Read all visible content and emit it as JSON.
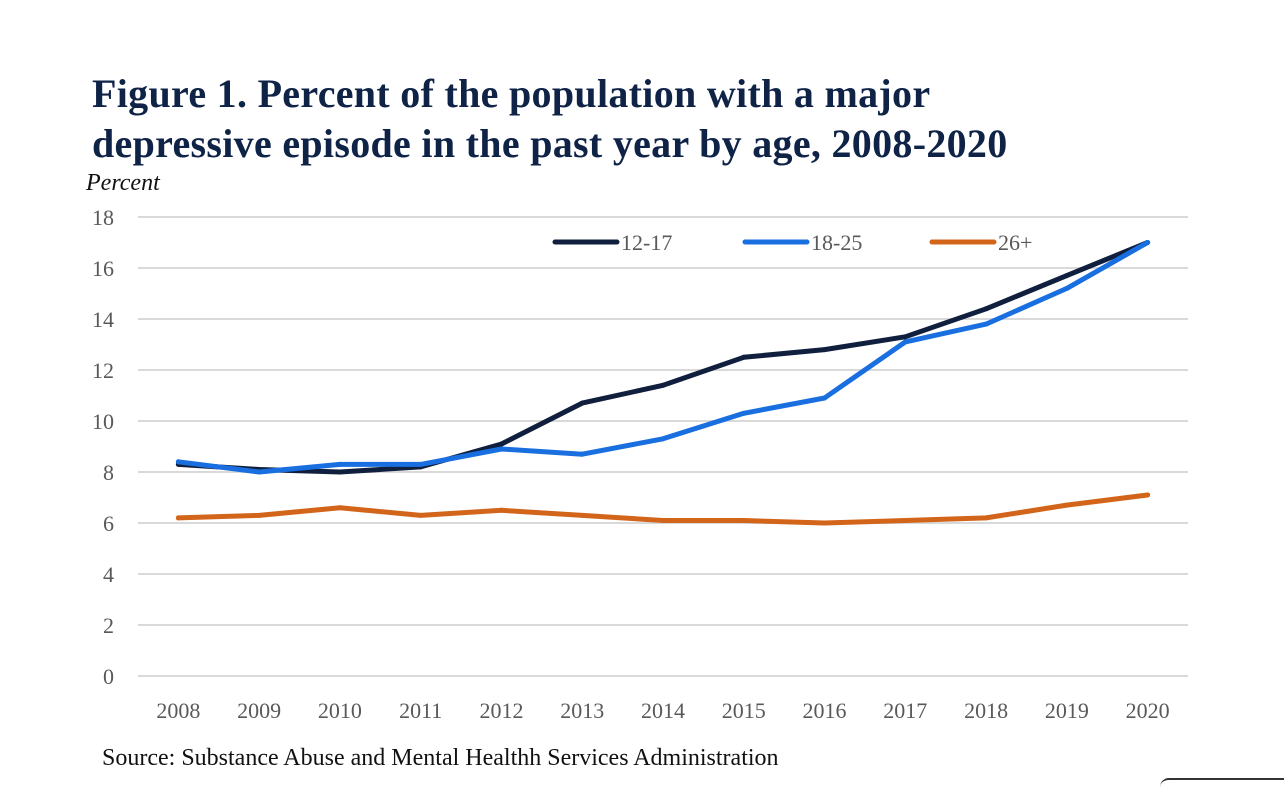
{
  "chart_data": {
    "type": "line",
    "title_lines": [
      "Figure 1. Percent of the population with a major",
      "depressive episode in the past year by age, 2008-2020"
    ],
    "ylabel": "Percent",
    "xlabel": "",
    "ylim": [
      0,
      18
    ],
    "yticks": [
      0,
      2,
      4,
      6,
      8,
      10,
      12,
      14,
      16,
      18
    ],
    "grid": "horizontal",
    "legend_position": "top-right",
    "categories": [
      "2008",
      "2009",
      "2010",
      "2011",
      "2012",
      "2013",
      "2014",
      "2015",
      "2016",
      "2017",
      "2018",
      "2019",
      "2020"
    ],
    "series": [
      {
        "name": "12-17",
        "color": "#0f1f3d",
        "values": [
          8.3,
          8.1,
          8.0,
          8.2,
          9.1,
          10.7,
          11.4,
          12.5,
          12.8,
          13.3,
          14.4,
          15.7,
          17.0
        ]
      },
      {
        "name": "18-25",
        "color": "#1a6fe0",
        "values": [
          8.4,
          8.0,
          8.3,
          8.3,
          8.9,
          8.7,
          9.3,
          10.3,
          10.9,
          13.1,
          13.8,
          15.2,
          17.0
        ]
      },
      {
        "name": "26+",
        "color": "#d2651a",
        "values": [
          6.2,
          6.3,
          6.6,
          6.3,
          6.5,
          6.3,
          6.1,
          6.1,
          6.0,
          6.1,
          6.2,
          6.7,
          7.1
        ]
      }
    ],
    "source": "Source: Substance Abuse and Mental Healthh Services Administration"
  }
}
